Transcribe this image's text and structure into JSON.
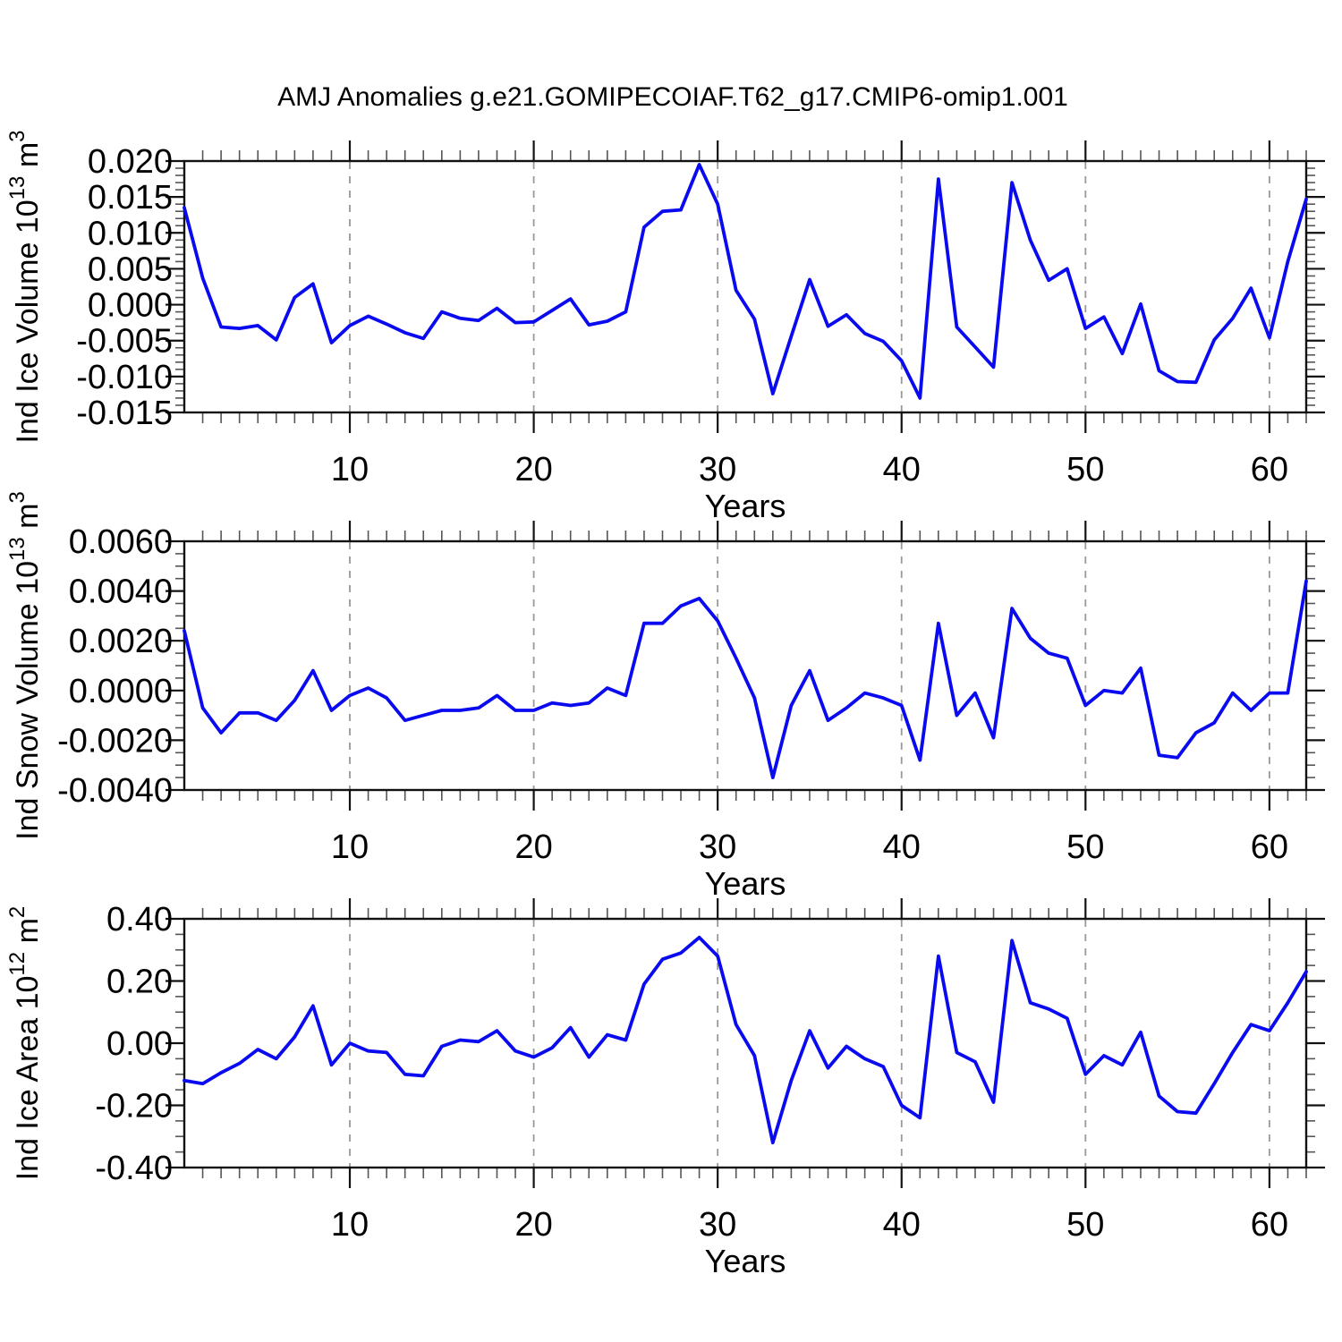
{
  "title": "AMJ Anomalies g.e21.GOMIPECOIAF.T62_g17.CMIP6-omip1.001",
  "line_color": "#0a0af0",
  "grid_color": "#999999",
  "frame_color": "#111111",
  "minor_tick_color": "#555555",
  "chart_data": [
    {
      "type": "line",
      "name": "ind-ice-volume",
      "ylabel": "Ind Ice Volume 10^13 m^3",
      "ylabel_parts": [
        [
          "t",
          "Ind Ice Volume 10"
        ],
        [
          "s",
          "13"
        ],
        [
          "t",
          " m"
        ],
        [
          "s",
          "3"
        ]
      ],
      "xlabel": "Years",
      "ylim": [
        -0.015,
        0.02
      ],
      "ytick_step": 0.005,
      "yminor_step": 0.001,
      "ydecimals": 3,
      "xlim": [
        1,
        62
      ],
      "xticks": [
        10,
        20,
        30,
        40,
        50,
        60
      ],
      "xminor_step": 1,
      "grid": true,
      "x_start_year": 1,
      "values": [
        0.0135,
        0.0037,
        -0.0031,
        -0.0033,
        -0.0029,
        -0.0049,
        0.001,
        0.0029,
        -0.0053,
        -0.0029,
        -0.0016,
        -0.0027,
        -0.0039,
        -0.0047,
        -0.001,
        -0.0019,
        -0.0022,
        -0.0005,
        -0.0025,
        -0.0024,
        -0.0008,
        0.0008,
        -0.0028,
        -0.0023,
        -0.001,
        0.0108,
        0.013,
        0.0132,
        0.0195,
        0.014,
        0.002,
        -0.002,
        -0.0124,
        -0.0044,
        0.0035,
        -0.003,
        -0.0014,
        -0.004,
        -0.0051,
        -0.0078,
        -0.013,
        0.0175,
        -0.0031,
        -0.0059,
        -0.0087,
        0.017,
        0.009,
        0.0034,
        0.005,
        -0.0033,
        -0.0017,
        -0.0068,
        0.0001,
        -0.0092,
        -0.0107,
        -0.0108,
        -0.0049,
        -0.0019,
        0.0023,
        -0.0046,
        0.006,
        0.0147
      ]
    },
    {
      "type": "line",
      "name": "ind-snow-volume",
      "ylabel": "Ind Snow Volume 10^13 m^3",
      "ylabel_parts": [
        [
          "t",
          "Ind Snow Volume 10"
        ],
        [
          "s",
          "13"
        ],
        [
          "t",
          " m"
        ],
        [
          "s",
          "3"
        ]
      ],
      "xlabel": "Years",
      "ylim": [
        -0.004,
        0.006
      ],
      "ytick_step": 0.002,
      "yminor_step": 0.0005,
      "ydecimals": 4,
      "xlim": [
        1,
        62
      ],
      "xticks": [
        10,
        20,
        30,
        40,
        50,
        60
      ],
      "xminor_step": 1,
      "grid": true,
      "x_start_year": 1,
      "values": [
        0.0024,
        -0.0007,
        -0.0017,
        -0.0009,
        -0.0009,
        -0.0012,
        -0.0004,
        0.0008,
        -0.0008,
        -0.0002,
        0.0001,
        -0.0003,
        -0.0012,
        -0.001,
        -0.0008,
        -0.0008,
        -0.0007,
        -0.0002,
        -0.0008,
        -0.0008,
        -0.0005,
        -0.0006,
        -0.0005,
        0.0001,
        -0.0002,
        0.0027,
        0.0027,
        0.0034,
        0.0037,
        0.0028,
        0.0013,
        -0.0003,
        -0.0035,
        -0.0006,
        0.0008,
        -0.0012,
        -0.0007,
        -0.0001,
        -0.0003,
        -0.0006,
        -0.0028,
        0.0027,
        -0.001,
        -0.0001,
        -0.0019,
        0.0033,
        0.0021,
        0.0015,
        0.0013,
        -0.0006,
        0.0,
        -0.0001,
        0.0009,
        -0.0026,
        -0.0027,
        -0.0017,
        -0.0013,
        -0.0001,
        -0.0008,
        -0.0001,
        -0.0001,
        0.0044
      ]
    },
    {
      "type": "line",
      "name": "ind-ice-area",
      "ylabel": "Ind Ice Area 10^12 m^2",
      "ylabel_parts": [
        [
          "t",
          "Ind Ice Area 10"
        ],
        [
          "s",
          "12"
        ],
        [
          "t",
          " m"
        ],
        [
          "s",
          "2"
        ]
      ],
      "xlabel": "Years",
      "ylim": [
        -0.4,
        0.4
      ],
      "ytick_step": 0.2,
      "yminor_step": 0.05,
      "ydecimals": 2,
      "xlim": [
        1,
        62
      ],
      "xticks": [
        10,
        20,
        30,
        40,
        50,
        60
      ],
      "xminor_step": 1,
      "grid": true,
      "x_start_year": 1,
      "values": [
        -0.12,
        -0.13,
        -0.095,
        -0.065,
        -0.02,
        -0.05,
        0.02,
        0.12,
        -0.07,
        0.0,
        -0.025,
        -0.03,
        -0.1,
        -0.105,
        -0.01,
        0.01,
        0.005,
        0.04,
        -0.025,
        -0.045,
        -0.015,
        0.05,
        -0.045,
        0.027,
        0.01,
        0.19,
        0.27,
        0.29,
        0.34,
        0.28,
        0.06,
        -0.04,
        -0.32,
        -0.12,
        0.04,
        -0.08,
        -0.01,
        -0.05,
        -0.075,
        -0.2,
        -0.24,
        0.28,
        -0.03,
        -0.06,
        -0.19,
        0.33,
        0.13,
        0.11,
        0.08,
        -0.1,
        -0.04,
        -0.07,
        0.035,
        -0.17,
        -0.22,
        -0.225,
        -0.13,
        -0.03,
        0.06,
        0.04,
        0.13,
        0.23
      ]
    }
  ]
}
